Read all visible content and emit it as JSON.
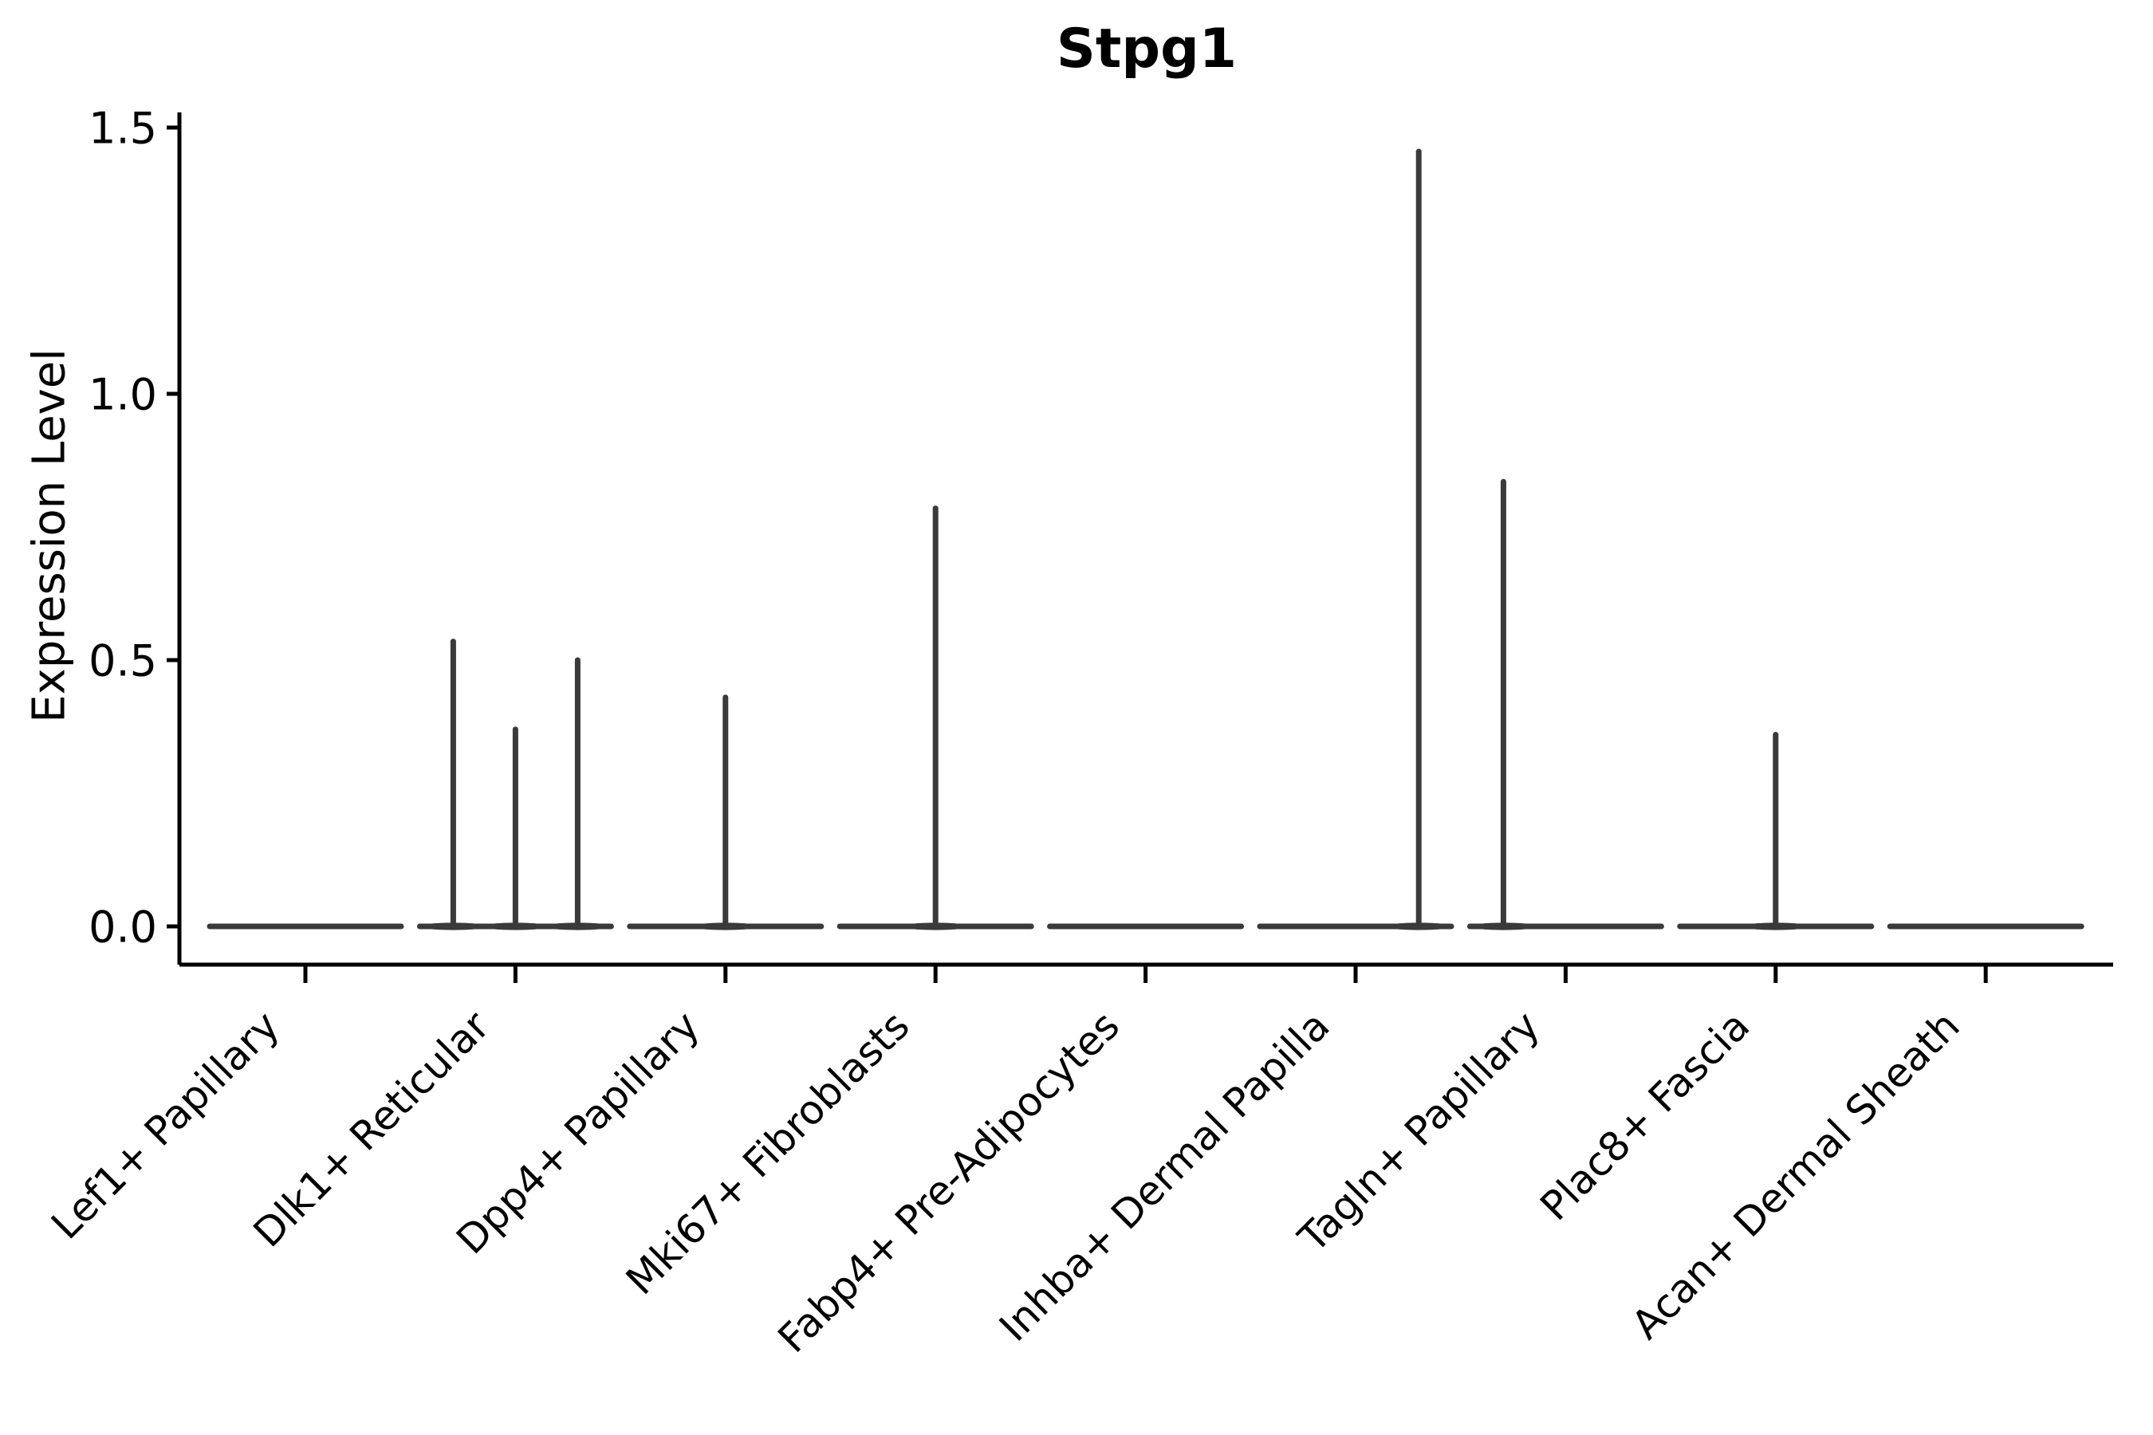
{
  "chart_data": {
    "type": "violin",
    "title": "Stpg1",
    "ylabel": "Expression Level",
    "xlabel": "",
    "legend": "none",
    "grid": false,
    "ylim": [
      -0.07,
      1.53
    ],
    "ytick_labels": [
      "0.0",
      "0.5",
      "1.0",
      "1.5"
    ],
    "ytick_values": [
      0.0,
      0.5,
      1.0,
      1.5
    ],
    "categories": [
      "Lef1+ Papillary",
      "Dlk1+ Reticular",
      "Dpp4+ Papillary",
      "Mki67+ Fibroblasts",
      "Fabp4+ Pre-Adipocytes",
      "Inhba+ Dermal Papilla",
      "Tagln+ Papillary",
      "Plac8+ Fascia",
      "Acan+ Dermal Sheath"
    ],
    "violins": [
      {
        "category": "Lef1+ Papillary",
        "baseline_value": 0.0,
        "spikes": []
      },
      {
        "category": "Dlk1+ Reticular",
        "baseline_value": 0.0,
        "spikes": [
          {
            "dx": -0.65,
            "max": 0.535
          },
          {
            "dx": 0.0,
            "max": 0.37
          },
          {
            "dx": 0.65,
            "max": 0.5
          }
        ]
      },
      {
        "category": "Dpp4+ Papillary",
        "baseline_value": 0.0,
        "spikes": [
          {
            "dx": 0.0,
            "max": 0.43
          }
        ]
      },
      {
        "category": "Mki67+ Fibroblasts",
        "baseline_value": 0.0,
        "spikes": [
          {
            "dx": 0.0,
            "max": 0.785
          }
        ]
      },
      {
        "category": "Fabp4+ Pre-Adipocytes",
        "baseline_value": 0.0,
        "spikes": []
      },
      {
        "category": "Inhba+ Dermal Papilla",
        "baseline_value": 0.0,
        "spikes": [
          {
            "dx": 0.66,
            "max": 1.455
          }
        ]
      },
      {
        "category": "Tagln+ Papillary",
        "baseline_value": 0.0,
        "spikes": [
          {
            "dx": -0.65,
            "max": 0.835
          }
        ]
      },
      {
        "category": "Plac8+ Fascia",
        "baseline_value": 0.0,
        "spikes": [
          {
            "dx": 0.0,
            "max": 0.36
          }
        ]
      },
      {
        "category": "Acan+ Dermal Sheath",
        "baseline_value": 0.0,
        "spikes": []
      }
    ],
    "colors": {
      "violin_line": "#3a3a3a",
      "axis": "#000000",
      "text": "#000000",
      "background": "#ffffff"
    }
  }
}
